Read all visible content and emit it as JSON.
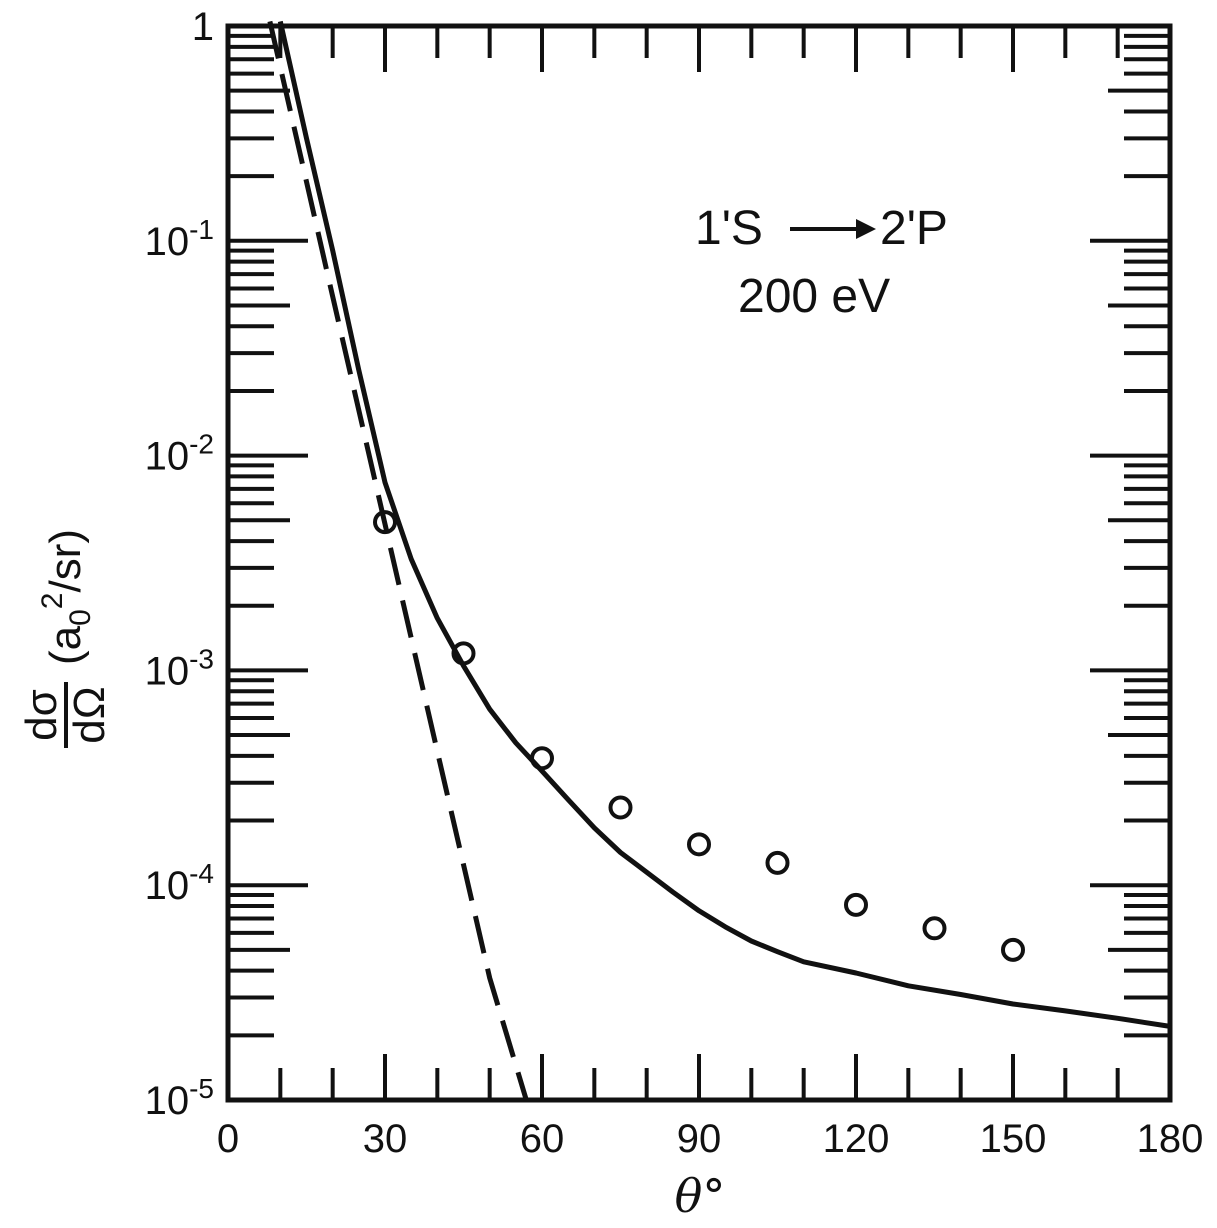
{
  "chart_data": {
    "type": "line",
    "title": "",
    "xlabel": "θ°",
    "ylabel": "dσ/dΩ (a0²/sr)",
    "ylabel_parts": {
      "numerator": "dσ",
      "denominator": "dΩ",
      "units_open": "(a",
      "units_sub": "0",
      "units_sup": "2",
      "units_close": "/sr)"
    },
    "xlim": [
      0,
      180
    ],
    "ylim": [
      1e-05,
      1
    ],
    "yscale": "log",
    "x_ticks": [
      0,
      30,
      60,
      90,
      120,
      150,
      180
    ],
    "x_tick_labels": [
      "0",
      "30",
      "60",
      "90",
      "120",
      "150",
      "180"
    ],
    "y_ticks": [
      1,
      0.1,
      0.01,
      0.001,
      0.0001,
      1e-05
    ],
    "y_tick_labels": [
      {
        "base": "1",
        "exp": ""
      },
      {
        "base": "10",
        "exp": "-1"
      },
      {
        "base": "10",
        "exp": "-2"
      },
      {
        "base": "10",
        "exp": "-3"
      },
      {
        "base": "10",
        "exp": "-4"
      },
      {
        "base": "10",
        "exp": "-5"
      }
    ],
    "annotation": {
      "line1_left": "1'S",
      "line1_right": "2'P",
      "line2": "200 eV"
    },
    "grid": false,
    "series": [
      {
        "style": "solid",
        "x": [
          10,
          15,
          20,
          25,
          30,
          35,
          40,
          45,
          50,
          55,
          60,
          65,
          70,
          75,
          80,
          85,
          90,
          95,
          100,
          105,
          110,
          120,
          130,
          140,
          150,
          160,
          170,
          180
        ],
        "y": [
          1.05,
          0.3,
          0.09,
          0.025,
          0.0075,
          0.0033,
          0.00175,
          0.00105,
          0.00066,
          0.00046,
          0.00034,
          0.00025,
          0.000185,
          0.000142,
          0.000115,
          9.3e-05,
          7.6e-05,
          6.4e-05,
          5.5e-05,
          4.9e-05,
          4.4e-05,
          3.9e-05,
          3.4e-05,
          3.1e-05,
          2.8e-05,
          2.6e-05,
          2.4e-05,
          2.2e-05
        ]
      },
      {
        "style": "dashed",
        "x": [
          8,
          20,
          30,
          40,
          50,
          57
        ],
        "y": [
          1.05,
          0.055,
          0.0048,
          0.00042,
          3.7e-05,
          1e-05
        ]
      },
      {
        "style": "markers",
        "marker": "open-circle",
        "x": [
          30,
          45,
          60,
          75,
          90,
          105,
          120,
          135,
          150
        ],
        "y": [
          0.0049,
          0.0012,
          0.00039,
          0.00023,
          0.000155,
          0.000127,
          8.1e-05,
          6.3e-05,
          5e-05
        ]
      }
    ]
  }
}
